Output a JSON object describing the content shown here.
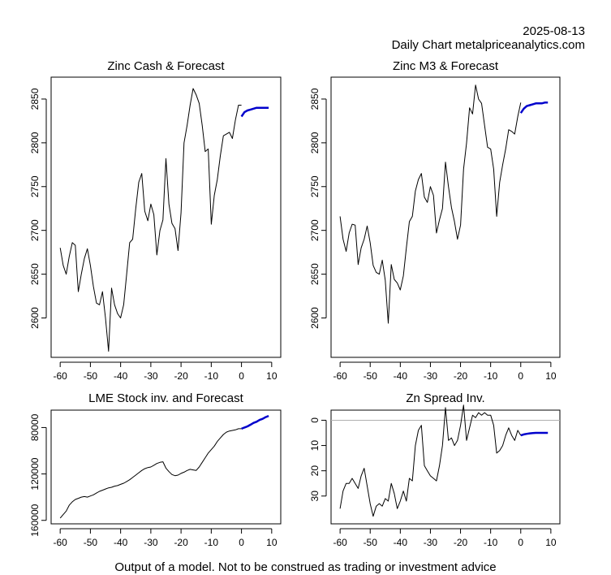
{
  "header": {
    "date": "2025-08-13",
    "subtitle": "Daily Chart metalpriceanalytics.com"
  },
  "footer": "Output of a model. Not to be construed as trading or investment advice",
  "colors": {
    "history": "#000000",
    "forecast": "#0000cc",
    "zero_line": "#b0b0b0"
  },
  "chart_data": [
    {
      "type": "line",
      "title": "Zinc Cash & Forecast",
      "xlim": [
        -63,
        13
      ],
      "ylim": [
        2555,
        2875
      ],
      "x_ticks": [
        -60,
        -50,
        -40,
        -30,
        -20,
        -10,
        0,
        10
      ],
      "y_ticks": [
        2600,
        2650,
        2700,
        2750,
        2800,
        2850
      ],
      "y_reversed": false,
      "series": [
        {
          "role": "history",
          "x": [
            -60,
            -59,
            -58,
            -57,
            -56,
            -55,
            -54,
            -53,
            -52,
            -51,
            -50,
            -49,
            -48,
            -47,
            -46,
            -45,
            -44,
            -43,
            -42,
            -41,
            -40,
            -39,
            -38,
            -37,
            -36,
            -35,
            -34,
            -33,
            -32,
            -31,
            -30,
            -29,
            -28,
            -27,
            -26,
            -25,
            -24,
            -23,
            -22,
            -21,
            -20,
            -19,
            -18,
            -17,
            -16,
            -15,
            -14,
            -13,
            -12,
            -11,
            -10,
            -9,
            -8,
            -7,
            -6,
            -5,
            -4,
            -3,
            -2,
            -1,
            0
          ],
          "y": [
            2680,
            2660,
            2650,
            2670,
            2686,
            2683,
            2630,
            2650,
            2668,
            2679,
            2660,
            2636,
            2617,
            2615,
            2630,
            2600,
            2562,
            2634,
            2615,
            2605,
            2600,
            2615,
            2650,
            2686,
            2690,
            2725,
            2755,
            2765,
            2722,
            2711,
            2730,
            2718,
            2672,
            2700,
            2712,
            2782,
            2730,
            2708,
            2702,
            2677,
            2720,
            2800,
            2820,
            2843,
            2862,
            2855,
            2845,
            2820,
            2790,
            2793,
            2707,
            2740,
            2758,
            2785,
            2808,
            2810,
            2812,
            2805,
            2826,
            2843,
            2843
          ]
        },
        {
          "role": "forecast",
          "x": [
            0,
            1,
            2,
            3,
            4,
            5,
            6,
            7,
            8,
            9
          ],
          "y": [
            2830,
            2835,
            2837,
            2838,
            2839,
            2840,
            2840,
            2840,
            2840,
            2840
          ]
        }
      ]
    },
    {
      "type": "line",
      "title": "Zinc M3 & Forecast",
      "xlim": [
        -63,
        13
      ],
      "ylim": [
        2555,
        2875
      ],
      "x_ticks": [
        -60,
        -50,
        -40,
        -30,
        -20,
        -10,
        0,
        10
      ],
      "y_ticks": [
        2600,
        2650,
        2700,
        2750,
        2800,
        2850
      ],
      "y_reversed": false,
      "series": [
        {
          "role": "history",
          "x": [
            -60,
            -59,
            -58,
            -57,
            -56,
            -55,
            -54,
            -53,
            -52,
            -51,
            -50,
            -49,
            -48,
            -47,
            -46,
            -45,
            -44,
            -43,
            -42,
            -41,
            -40,
            -39,
            -38,
            -37,
            -36,
            -35,
            -34,
            -33,
            -32,
            -31,
            -30,
            -29,
            -28,
            -27,
            -26,
            -25,
            -24,
            -23,
            -22,
            -21,
            -20,
            -19,
            -18,
            -17,
            -16,
            -15,
            -14,
            -13,
            -12,
            -11,
            -10,
            -9,
            -8,
            -7,
            -6,
            -5,
            -4,
            -3,
            -2,
            -1,
            0
          ],
          "y": [
            2716,
            2690,
            2676,
            2697,
            2707,
            2706,
            2661,
            2680,
            2690,
            2705,
            2686,
            2660,
            2652,
            2650,
            2666,
            2643,
            2594,
            2661,
            2644,
            2640,
            2632,
            2648,
            2680,
            2710,
            2716,
            2745,
            2758,
            2765,
            2738,
            2732,
            2750,
            2740,
            2697,
            2712,
            2725,
            2778,
            2750,
            2726,
            2710,
            2690,
            2706,
            2770,
            2800,
            2840,
            2833,
            2866,
            2850,
            2845,
            2820,
            2795,
            2793,
            2770,
            2716,
            2755,
            2775,
            2793,
            2815,
            2813,
            2810,
            2830,
            2846
          ]
        },
        {
          "role": "forecast",
          "x": [
            0,
            1,
            2,
            3,
            4,
            5,
            6,
            7,
            8,
            9
          ],
          "y": [
            2834,
            2839,
            2842,
            2843,
            2844,
            2845,
            2845,
            2845,
            2846,
            2846
          ]
        }
      ]
    },
    {
      "type": "line",
      "title": "LME Stock inv. and Forecast",
      "xlim": [
        -63,
        13
      ],
      "ylim": [
        163000,
        65000
      ],
      "x_ticks": [
        -60,
        -50,
        -40,
        -30,
        -20,
        -10,
        0,
        10
      ],
      "y_ticks": [
        80000,
        120000,
        160000
      ],
      "y_reversed": true,
      "series": [
        {
          "role": "history",
          "x": [
            -60,
            -59,
            -58,
            -57,
            -56,
            -55,
            -54,
            -53,
            -52,
            -51,
            -50,
            -49,
            -48,
            -47,
            -46,
            -45,
            -44,
            -43,
            -42,
            -41,
            -40,
            -39,
            -38,
            -37,
            -36,
            -35,
            -34,
            -33,
            -32,
            -31,
            -30,
            -29,
            -28,
            -27,
            -26,
            -25,
            -24,
            -23,
            -22,
            -21,
            -20,
            -19,
            -18,
            -17,
            -16,
            -15,
            -14,
            -13,
            -12,
            -11,
            -10,
            -9,
            -8,
            -7,
            -6,
            -5,
            -4,
            -3,
            -2,
            -1,
            0
          ],
          "y": [
            158000,
            155000,
            152000,
            147000,
            144000,
            142000,
            141000,
            140000,
            139500,
            140000,
            139000,
            138000,
            136500,
            135000,
            134000,
            133000,
            132000,
            131500,
            130500,
            130000,
            129000,
            128000,
            126500,
            125000,
            123000,
            121000,
            119000,
            117000,
            115500,
            114500,
            114000,
            112500,
            111000,
            110000,
            109500,
            115000,
            118000,
            120500,
            121500,
            121000,
            119500,
            118500,
            117000,
            116000,
            116500,
            117000,
            114000,
            110000,
            106000,
            102000,
            99000,
            96000,
            92000,
            89000,
            86000,
            84000,
            83000,
            82500,
            82000,
            81000,
            81000
          ]
        },
        {
          "role": "forecast",
          "x": [
            0,
            1,
            2,
            3,
            4,
            5,
            6,
            7,
            8,
            9
          ],
          "y": [
            81000,
            80000,
            79000,
            77500,
            76000,
            75000,
            73500,
            72500,
            71000,
            70000
          ]
        }
      ]
    },
    {
      "type": "line",
      "title": "Zn Spread Inv.",
      "xlim": [
        -63,
        13
      ],
      "ylim": [
        41,
        -4
      ],
      "x_ticks": [
        -60,
        -50,
        -40,
        -30,
        -20,
        -10,
        0,
        10
      ],
      "y_ticks": [
        0,
        10,
        20,
        30
      ],
      "y_reversed": true,
      "hline": 0,
      "series": [
        {
          "role": "history",
          "x": [
            -60,
            -59,
            -58,
            -57,
            -56,
            -55,
            -54,
            -53,
            -52,
            -51,
            -50,
            -49,
            -48,
            -47,
            -46,
            -45,
            -44,
            -43,
            -42,
            -41,
            -40,
            -39,
            -38,
            -37,
            -36,
            -35,
            -34,
            -33,
            -32,
            -31,
            -30,
            -29,
            -28,
            -27,
            -26,
            -25,
            -24,
            -23,
            -22,
            -21,
            -20,
            -19,
            -18,
            -17,
            -16,
            -15,
            -14,
            -13,
            -12,
            -11,
            -10,
            -9,
            -8,
            -7,
            -6,
            -5,
            -4,
            -3,
            -2,
            -1,
            0
          ],
          "y": [
            35,
            28,
            25,
            25,
            23,
            25,
            27,
            22,
            19,
            26,
            33,
            38,
            34,
            33,
            34,
            31,
            32,
            25,
            29,
            35,
            32,
            28,
            32,
            23,
            24,
            10,
            4,
            2,
            18,
            20,
            22,
            23,
            24,
            18,
            10,
            -5,
            8,
            7,
            10,
            8,
            2,
            -6,
            8,
            3,
            -2,
            -1,
            -3,
            -2,
            -3,
            -2,
            -2,
            2,
            13,
            12,
            10,
            6,
            3,
            6,
            8,
            4,
            6
          ]
        },
        {
          "role": "forecast",
          "x": [
            0,
            1,
            2,
            3,
            4,
            5,
            6,
            7,
            8,
            9
          ],
          "y": [
            6,
            5.6,
            5.4,
            5.2,
            5.1,
            5,
            5,
            5,
            5,
            5
          ]
        }
      ]
    }
  ]
}
